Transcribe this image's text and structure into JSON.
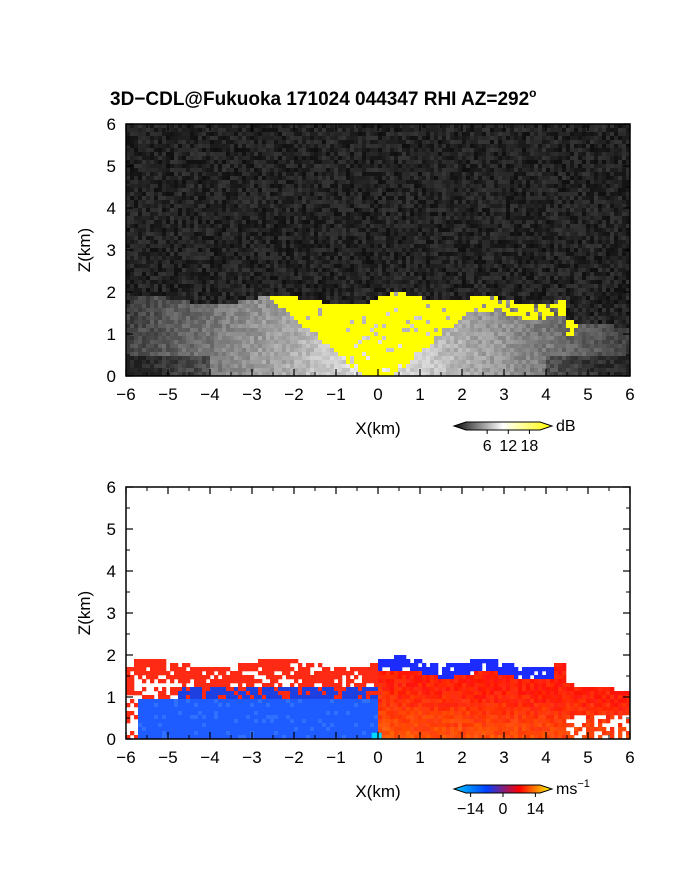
{
  "title": "3D−CDL@Fukuoka 171024 044347 RHI AZ=292",
  "title_superscript": "o",
  "chart_data": [
    {
      "type": "heatmap",
      "panel": "reflectivity",
      "xlabel": "X(km)",
      "ylabel": "Z(km)",
      "xlim": [
        -6,
        6
      ],
      "ylim": [
        0,
        6
      ],
      "x_ticks": [
        "−6",
        "−5",
        "−4",
        "−3",
        "−2",
        "−1",
        "0",
        "1",
        "2",
        "3",
        "4",
        "5",
        "6"
      ],
      "y_ticks": [
        "0",
        "1",
        "2",
        "3",
        "4",
        "5",
        "6"
      ],
      "colorbar": {
        "unit": "dB",
        "ticks": [
          "6",
          "12",
          "18"
        ],
        "range": [
          0,
          21
        ],
        "colors": [
          "#0b0b0b",
          "#ffffff",
          "#ffff00"
        ]
      },
      "features": {
        "noise_top_km": 6.0,
        "echo_top_left_km": 1.8,
        "echo_top_center_km": 1.9,
        "echo_top_right_km": 1.3,
        "saturated_color": "#ffff00",
        "noise_color": "#1a1a1a"
      }
    },
    {
      "type": "heatmap",
      "panel": "doppler_velocity",
      "xlabel": "X(km)",
      "ylabel": "Z(km)",
      "xlim": [
        -6,
        6
      ],
      "ylim": [
        0,
        6
      ],
      "x_ticks": [
        "−6",
        "−5",
        "−4",
        "−3",
        "−2",
        "−1",
        "0",
        "1",
        "2",
        "3",
        "4",
        "5",
        "6"
      ],
      "y_ticks": [
        "0",
        "1",
        "2",
        "3",
        "4",
        "5",
        "6"
      ],
      "colorbar": {
        "unit": "ms",
        "unit_superscript": "−1",
        "ticks": [
          "−14",
          "0",
          "14"
        ],
        "range": [
          -16,
          16
        ],
        "colors": [
          "#00c8ff",
          "#0040ff",
          "#ff0000",
          "#ffff00"
        ]
      },
      "features": {
        "negative_color": "#1e5cff",
        "positive_color": "#ff3a10",
        "upper_layer_left_color": "#ff2a14",
        "upper_layer_right_color": "#1c2cff"
      }
    }
  ]
}
